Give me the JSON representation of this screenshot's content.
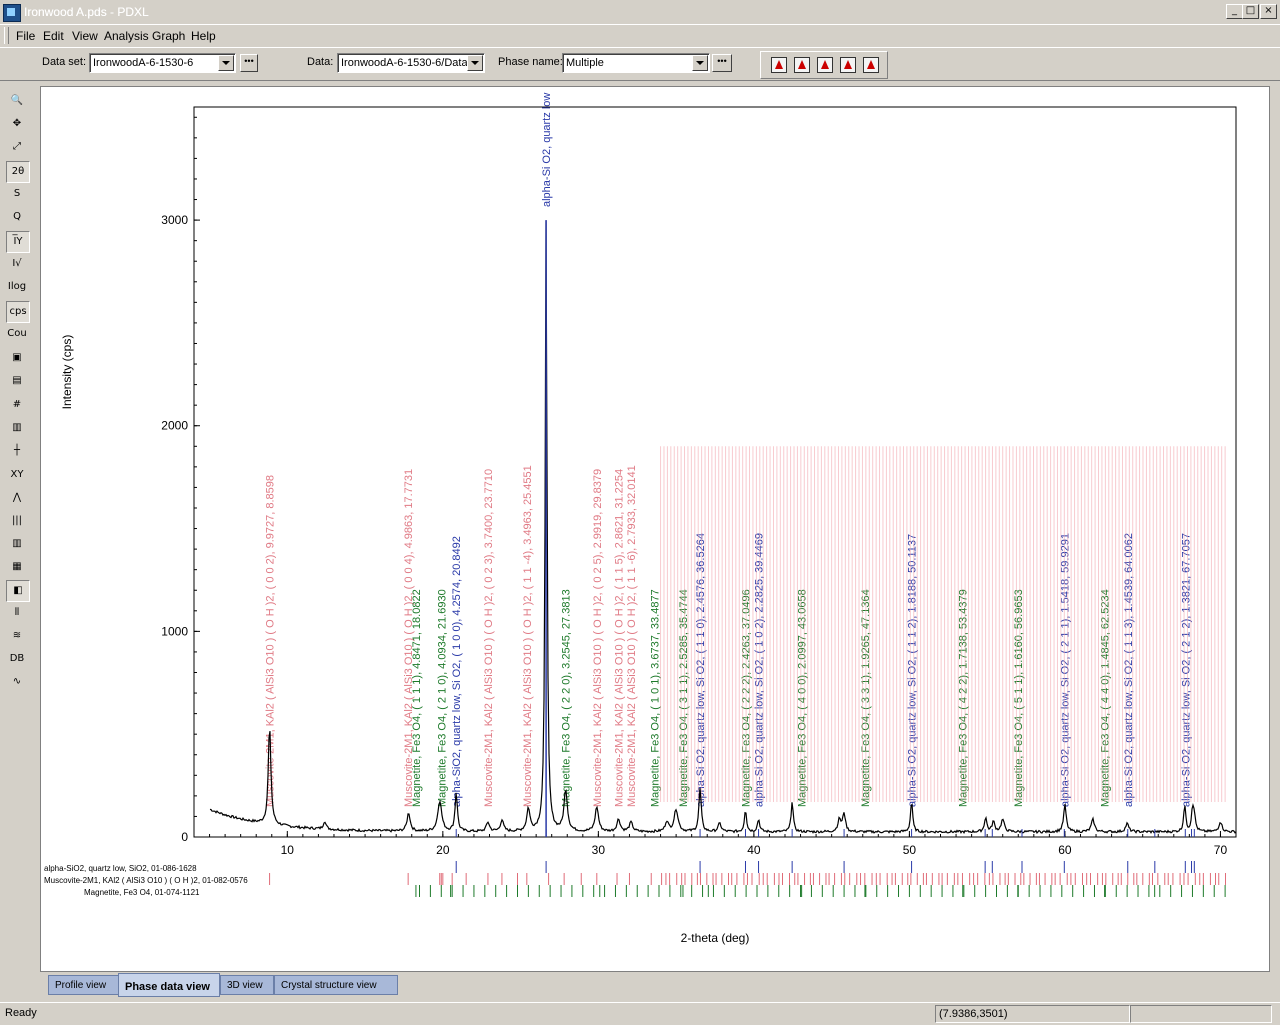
{
  "window": {
    "title": "Ironwood A.pds - PDXL",
    "min_glyph": "_",
    "max_glyph": "□",
    "close_glyph": "×"
  },
  "menu": [
    {
      "label": "File"
    },
    {
      "label": "Edit"
    },
    {
      "label": "View"
    },
    {
      "label": "Analysis"
    },
    {
      "label": "Graph"
    },
    {
      "label": "Help"
    }
  ],
  "toolbar": {
    "dataset_label": "Data set:",
    "dataset_value": "IronwoodA-6-1530-6",
    "data_label": "Data:",
    "data_value": "IronwoodA-6-1530-6/Data",
    "phase_label": "Phase name:",
    "phase_value": "Multiple",
    "more_glyph": "•••"
  },
  "left_tools": [
    {
      "name": "zoom-icon",
      "glyph": "🔍"
    },
    {
      "name": "pan-icon",
      "glyph": "✥"
    },
    {
      "name": "fit-icon",
      "glyph": "⤢"
    },
    {
      "name": "two-theta-icon",
      "glyph": "2θ",
      "pressed": true
    },
    {
      "name": "s-axis-icon",
      "glyph": "S"
    },
    {
      "name": "q-axis-icon",
      "glyph": "Q"
    },
    {
      "name": "intensity-icon",
      "glyph": "I̅Y",
      "pressed": true
    },
    {
      "name": "sqrt-intensity-icon",
      "glyph": "I√"
    },
    {
      "name": "log-intensity-icon",
      "glyph": "Ilog"
    },
    {
      "name": "cps-icon",
      "glyph": "cps",
      "pressed": true
    },
    {
      "name": "counts-icon",
      "glyph": "Cou"
    },
    {
      "name": "camera-icon",
      "glyph": "▣"
    },
    {
      "name": "copy-icon",
      "glyph": "▤"
    },
    {
      "name": "grid-icon",
      "glyph": "#"
    },
    {
      "name": "note-icon",
      "glyph": "▥"
    },
    {
      "name": "axis-icon",
      "glyph": "┼"
    },
    {
      "name": "xy-icon",
      "glyph": "XY"
    },
    {
      "name": "peak-icon",
      "glyph": "⋀"
    },
    {
      "name": "bars-icon",
      "glyph": "|||"
    },
    {
      "name": "phase-bars-icon",
      "glyph": "▥"
    },
    {
      "name": "pattern-icon",
      "glyph": "▦"
    },
    {
      "name": "marker-icon",
      "glyph": "◧",
      "pressed": true
    },
    {
      "name": "stick-icon",
      "glyph": "⫴"
    },
    {
      "name": "diff-icon",
      "glyph": "≋"
    },
    {
      "name": "db-icon",
      "glyph": "DB"
    },
    {
      "name": "fit-curve-icon",
      "glyph": "∿"
    }
  ],
  "tabs": [
    {
      "label": "Profile view"
    },
    {
      "label": "Phase data view",
      "active": true
    },
    {
      "label": "3D view"
    },
    {
      "label": "Crystal structure view"
    }
  ],
  "status": {
    "ready": "Ready",
    "coords": "(7.9386,3501)"
  },
  "chart_data": {
    "type": "line",
    "xlabel": "2-theta (deg)",
    "ylabel": "Intensity (cps)",
    "xlim": [
      4,
      71
    ],
    "ylim": [
      0,
      3550
    ],
    "xticks": [
      10,
      20,
      30,
      40,
      50,
      60,
      70
    ],
    "yticks": [
      0,
      1000,
      2000,
      3000
    ],
    "peaks": [
      {
        "x": 8.86,
        "y": 480,
        "w": 0.1
      },
      {
        "x": 12.4,
        "y": 40,
        "w": 0.1
      },
      {
        "x": 17.8,
        "y": 90,
        "w": 0.12
      },
      {
        "x": 19.8,
        "y": 150,
        "w": 0.15
      },
      {
        "x": 20.86,
        "y": 190,
        "w": 0.09
      },
      {
        "x": 22.9,
        "y": 45,
        "w": 0.12
      },
      {
        "x": 23.8,
        "y": 55,
        "w": 0.12
      },
      {
        "x": 25.5,
        "y": 110,
        "w": 0.12
      },
      {
        "x": 26.64,
        "y": 3000,
        "w": 0.07
      },
      {
        "x": 27.9,
        "y": 200,
        "w": 0.13
      },
      {
        "x": 29.9,
        "y": 120,
        "w": 0.13
      },
      {
        "x": 31.3,
        "y": 60,
        "w": 0.13
      },
      {
        "x": 32.1,
        "y": 45,
        "w": 0.13
      },
      {
        "x": 34.4,
        "y": 50,
        "w": 0.12
      },
      {
        "x": 35.0,
        "y": 110,
        "w": 0.15
      },
      {
        "x": 36.54,
        "y": 210,
        "w": 0.09
      },
      {
        "x": 37.8,
        "y": 40,
        "w": 0.12
      },
      {
        "x": 39.46,
        "y": 110,
        "w": 0.08
      },
      {
        "x": 40.3,
        "y": 60,
        "w": 0.09
      },
      {
        "x": 42.46,
        "y": 150,
        "w": 0.08
      },
      {
        "x": 45.5,
        "y": 60,
        "w": 0.12
      },
      {
        "x": 45.8,
        "y": 90,
        "w": 0.1
      },
      {
        "x": 50.14,
        "y": 150,
        "w": 0.08
      },
      {
        "x": 54.9,
        "y": 70,
        "w": 0.09
      },
      {
        "x": 55.4,
        "y": 50,
        "w": 0.1
      },
      {
        "x": 56.0,
        "y": 60,
        "w": 0.12
      },
      {
        "x": 60.0,
        "y": 130,
        "w": 0.1
      },
      {
        "x": 61.8,
        "y": 60,
        "w": 0.12
      },
      {
        "x": 64.0,
        "y": 40,
        "w": 0.12
      },
      {
        "x": 67.7,
        "y": 130,
        "w": 0.08
      },
      {
        "x": 68.2,
        "y": 90,
        "w": 0.08
      },
      {
        "x": 68.3,
        "y": 80,
        "w": 0.1
      },
      {
        "x": 70.0,
        "y": 50,
        "w": 0.12
      }
    ],
    "background": {
      "base": 25,
      "low_angle": 110,
      "decay": 3.5
    },
    "phases": [
      {
        "name": "alpha-SiO2, quartz low, SiO2, 01-086-1628",
        "color": "#2a3aa8",
        "ticks": [
          20.86,
          26.64,
          36.54,
          39.46,
          40.3,
          42.46,
          45.8,
          50.14,
          54.87,
          55.33,
          57.24,
          59.96,
          64.04,
          65.78,
          67.74,
          68.14,
          68.32
        ]
      },
      {
        "name": "Muscovite-2M1, KAl2 ( AlSi3 O10 ) ( O H )2, 01-082-0576",
        "color": "#e06c78",
        "ticks_range": {
          "start": 8.86,
          "first_block": [
            8.86,
            17.77,
            19.8,
            19.9,
            20.0,
            20.6,
            21.5,
            22.9,
            23.8,
            24.8,
            25.4,
            26.8,
            27.8,
            28.9,
            29.9,
            31.2,
            32.0,
            33.4
          ]
        },
        "dense_from": 34.0,
        "dense_to": 70.5
      },
      {
        "name": "Magnetite, Fe3 O4, 01-074-1121",
        "color": "#1d7a2a",
        "ticks": [
          18.27,
          20.5,
          30.09,
          35.44,
          37.07,
          43.07,
          47.14,
          53.43,
          56.97,
          62.55,
          65.77,
          70.9,
          73.9
        ]
      }
    ],
    "peak_labels": [
      {
        "x": 8.86,
        "text": "Muscovite-2M1, KAl2 ( AlSi3 O10 ) ( O H )2, ( 0 0 2), 9.9727, 8.8598",
        "color": "#e07a85"
      },
      {
        "x": 17.77,
        "text": "Muscovite-2M1, KAl2 ( AlSi3 O10 ) ( O H )2, ( 0 0 4), 4.9863, 17.7731",
        "color": "#e07a85"
      },
      {
        "x": 18.27,
        "text": "Magnetite, Fe3 O4, ( 1 1 1), 4.8471, 18.0822",
        "color": "#1d7a2a"
      },
      {
        "x": 19.9,
        "text": "Magnetite, Fe3 O4, ( 2 1 0), 4.0934, 21.6930",
        "color": "#1d7a2a"
      },
      {
        "x": 20.86,
        "text": "alpha-SiO2, quartz low, Si O2, ( 1 0 0), 4.2574, 20.8492",
        "color": "#2a3aa8"
      },
      {
        "x": 26.64,
        "text": "alpha-Si O2, quartz low",
        "color": "#2a3aa8"
      },
      {
        "x": 22.9,
        "text": "Muscovite-2M1, KAl2 ( AlSi3 O10 ) ( O H )2, ( 0 2 3), 3.7400, 23.7710",
        "color": "#e07a85"
      },
      {
        "x": 25.4,
        "text": "Muscovite-2M1, KAl2 ( AlSi3 O10 ) ( O H )2, ( 1 1 -4), 3.4963, 25.4551",
        "color": "#e07a85"
      },
      {
        "x": 27.9,
        "text": "Magnetite, Fe3 O4, ( 2 2 0), 3.2545, 27.3813",
        "color": "#1d7a2a"
      },
      {
        "x": 29.9,
        "text": "Muscovite-2M1, KAl2 ( AlSi3 O10 ) ( O H )2, ( 0 2 5), 2.9919, 29.8379",
        "color": "#e07a85"
      },
      {
        "x": 31.3,
        "text": "Muscovite-2M1, KAl2 ( AlSi3 O10 ) ( O H )2, ( 1 1 5), 2.8621, 31.2254",
        "color": "#e07a85"
      },
      {
        "x": 32.1,
        "text": "Muscovite-2M1, KAl2 ( AlSi3 O10 ) ( O H )2, ( 1 1 -6), 2.7933, 32.0141",
        "color": "#e07a85"
      },
      {
        "x": 33.6,
        "text": "Magnetite, Fe3 O4, ( 1 0 1), 3.6737, 33.4877",
        "color": "#1d7a2a"
      },
      {
        "x": 35.44,
        "text": "Magnetite, Fe3 O4, ( 3 1 1), 2.5285, 35.4744",
        "color": "#1d7a2a"
      },
      {
        "x": 36.54,
        "text": "alpha-Si O2, quartz low, Si O2, ( 1 1 0), 2.4576, 36.5264",
        "color": "#2a3aa8"
      },
      {
        "x": 39.46,
        "text": "Magnetite, Fe3 O4, ( 2 2 2), 2.4263, 37.0496",
        "color": "#1d7a2a"
      },
      {
        "x": 40.3,
        "text": "alpha-Si O2, quartz low, Si O2, ( 1 0 2), 2.2825, 39.4469",
        "color": "#2a3aa8"
      },
      {
        "x": 43.07,
        "text": "Magnetite, Fe3 O4, ( 4 0 0), 2.0997, 43.0658",
        "color": "#1d7a2a"
      },
      {
        "x": 47.14,
        "text": "Magnetite, Fe3 O4, ( 3 3 1), 1.9265, 47.1364",
        "color": "#1d7a2a"
      },
      {
        "x": 50.14,
        "text": "alpha-Si O2, quartz low, Si O2, ( 1 1 2), 1.8188, 50.1137",
        "color": "#2a3aa8"
      },
      {
        "x": 53.43,
        "text": "Magnetite, Fe3 O4, ( 4 2 2), 1.7138, 53.4379",
        "color": "#1d7a2a"
      },
      {
        "x": 56.97,
        "text": "Magnetite, Fe3 O4, ( 5 1 1), 1.6160, 56.9653",
        "color": "#1d7a2a"
      },
      {
        "x": 59.96,
        "text": "alpha-Si O2, quartz low, Si O2, ( 2 1 1), 1.5418, 59.9291",
        "color": "#2a3aa8"
      },
      {
        "x": 62.55,
        "text": "Magnetite, Fe3 O4, ( 4 4 0), 1.4845, 62.5234",
        "color": "#1d7a2a"
      },
      {
        "x": 64.04,
        "text": "alpha-Si O2, quartz low, Si O2, ( 1 1 3), 1.4539, 64.0062",
        "color": "#2a3aa8"
      },
      {
        "x": 67.74,
        "text": "alpha-Si O2, quartz low, Si O2, ( 2 1 2), 1.3821, 67.7057",
        "color": "#2a3aa8"
      }
    ]
  }
}
